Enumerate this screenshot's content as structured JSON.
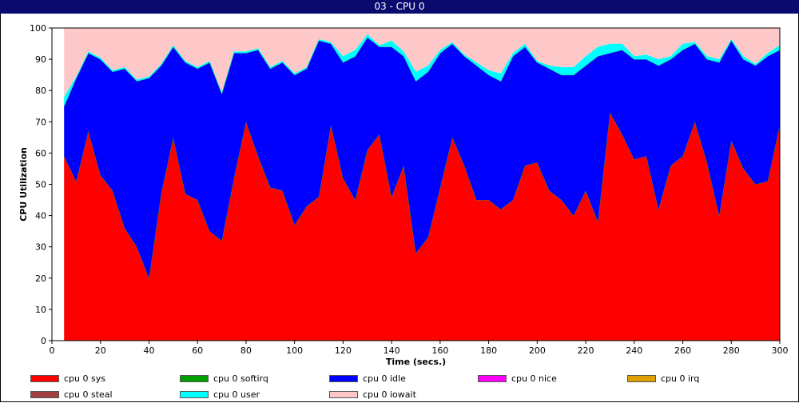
{
  "window": {
    "title": "03 - CPU 0"
  },
  "chart_data": {
    "type": "area",
    "stacked": true,
    "title": "03 - CPU 0",
    "xlabel": "Time (secs.)",
    "ylabel": "CPU Utilization",
    "xlim": [
      0,
      300
    ],
    "ylim": [
      0,
      100
    ],
    "x_ticks": [
      0,
      20,
      40,
      60,
      80,
      100,
      120,
      140,
      160,
      180,
      200,
      220,
      240,
      260,
      280,
      300
    ],
    "y_ticks": [
      0,
      10,
      20,
      30,
      40,
      50,
      60,
      70,
      80,
      90,
      100
    ],
    "grid": false,
    "legend_position": "bottom",
    "x": [
      5,
      10,
      15,
      20,
      25,
      30,
      35,
      40,
      45,
      50,
      55,
      60,
      65,
      70,
      75,
      80,
      85,
      90,
      95,
      100,
      105,
      110,
      115,
      120,
      125,
      130,
      135,
      140,
      145,
      150,
      155,
      160,
      165,
      170,
      175,
      180,
      185,
      190,
      195,
      200,
      205,
      210,
      215,
      220,
      225,
      230,
      235,
      240,
      245,
      250,
      255,
      260,
      265,
      270,
      275,
      280,
      285,
      290,
      295,
      300
    ],
    "series": [
      {
        "name": "cpu 0 sys",
        "color": "#ff0000",
        "values": [
          59,
          51,
          67,
          53,
          48,
          36,
          30,
          20,
          47,
          65,
          47,
          45,
          35,
          32,
          52,
          70,
          59,
          49,
          48,
          37,
          43,
          46,
          69,
          52,
          45,
          61,
          66,
          46,
          56,
          28,
          33,
          49,
          65,
          56,
          45,
          45,
          42,
          45,
          56,
          57,
          48,
          45,
          40,
          48,
          38,
          73,
          66,
          58,
          59,
          42,
          56,
          59,
          70,
          57,
          40,
          64,
          55,
          50,
          51,
          69
        ]
      },
      {
        "name": "cpu 0 softirq",
        "color": "#00a000",
        "values": [
          0,
          0,
          0,
          0,
          0,
          0,
          0,
          0,
          0,
          0,
          0,
          0,
          0,
          0,
          0,
          0,
          0,
          0,
          0,
          0,
          0,
          0,
          0,
          0,
          0,
          0,
          0,
          0,
          0,
          0,
          0,
          0,
          0,
          0,
          0,
          0,
          0,
          0,
          0,
          0,
          0,
          0,
          0,
          0,
          0,
          0,
          0,
          0,
          0,
          0,
          0,
          0,
          0,
          0,
          0,
          0,
          0,
          0,
          0,
          0
        ]
      },
      {
        "name": "cpu 0 idle",
        "color": "#0000ff",
        "values": [
          16,
          33,
          25,
          37,
          38,
          51,
          53,
          64,
          41,
          29,
          42,
          42,
          54,
          47,
          40,
          22,
          34,
          38,
          41,
          48,
          44,
          50,
          26,
          37,
          46,
          36,
          28,
          48,
          35,
          55,
          53,
          43,
          30,
          35,
          43,
          40,
          41,
          46,
          38,
          32,
          39,
          40,
          45,
          40,
          53,
          19,
          27,
          32,
          31,
          46,
          34,
          34,
          25,
          33,
          49,
          32,
          35,
          38,
          40,
          24
        ]
      },
      {
        "name": "cpu 0 nice",
        "color": "#ff00ff",
        "values": [
          0,
          0,
          0,
          0,
          0,
          0,
          0,
          0,
          0,
          0,
          0,
          0,
          0,
          0,
          0,
          0,
          0,
          0,
          0,
          0,
          0,
          0,
          0,
          0,
          0,
          0,
          0,
          0,
          0,
          0,
          0,
          0,
          0,
          0,
          0,
          0,
          0,
          0,
          0,
          0,
          0,
          0,
          0,
          0,
          0,
          0,
          0,
          0,
          0,
          0,
          0,
          0,
          0,
          0,
          0,
          0,
          0,
          0,
          0,
          0
        ]
      },
      {
        "name": "cpu 0 irq",
        "color": "#e0a000",
        "values": [
          0,
          0,
          0,
          0,
          0,
          0,
          0,
          0,
          0,
          0,
          0,
          0,
          0,
          0,
          0,
          0,
          0,
          0,
          0,
          0,
          0,
          0,
          0,
          0,
          0,
          0,
          0,
          0,
          0,
          0,
          0,
          0,
          0,
          0,
          0,
          0,
          0,
          0,
          0,
          0,
          0,
          0,
          0,
          0,
          0,
          0,
          0,
          0,
          0,
          0,
          0,
          0,
          0,
          0,
          0,
          0,
          0,
          0,
          0,
          0
        ]
      },
      {
        "name": "cpu 0 steal",
        "color": "#a04040",
        "values": [
          0,
          0,
          0,
          0,
          0,
          0,
          0,
          0,
          0,
          0,
          0,
          0,
          0,
          0,
          0,
          0,
          0,
          0,
          0,
          0,
          0,
          0,
          0,
          0,
          0,
          0,
          0,
          0,
          0,
          0,
          0,
          0,
          0,
          0,
          0,
          0,
          0,
          0,
          0,
          0,
          0,
          0,
          0,
          0,
          0,
          0,
          0,
          0,
          0,
          0,
          0,
          0,
          0,
          0,
          0,
          0,
          0,
          0,
          0,
          0
        ]
      },
      {
        "name": "cpu 0 user",
        "color": "#00ffff",
        "values": [
          3,
          0.5,
          0.5,
          0.5,
          0.5,
          0.5,
          0.5,
          0.5,
          0.5,
          0.5,
          0.5,
          0.5,
          0.5,
          0.5,
          0.5,
          0.5,
          0.5,
          0.5,
          0.5,
          0.5,
          0.5,
          0.5,
          0.5,
          2,
          2,
          1,
          0.5,
          2,
          1.5,
          3,
          2,
          1,
          0.5,
          0.5,
          1,
          1.5,
          2.5,
          1,
          1,
          0.5,
          1,
          2.5,
          2.5,
          3,
          3,
          3,
          2,
          1,
          1.5,
          2,
          1,
          2,
          0.5,
          1,
          1,
          0.5,
          1,
          0.5,
          1,
          1.5
        ]
      },
      {
        "name": "cpu 0 iowait",
        "color": "#ffc8c8",
        "values": [
          22,
          15.5,
          7.5,
          9.5,
          13.5,
          12.5,
          16.5,
          15.5,
          11.5,
          5.5,
          10.5,
          12.5,
          10.5,
          20.5,
          7.5,
          7.5,
          6.5,
          12.5,
          10.5,
          14.5,
          12.5,
          3.5,
          4.5,
          9,
          7,
          2,
          5.5,
          4,
          7.5,
          14,
          12,
          7,
          4.5,
          8.5,
          11,
          13.5,
          14.5,
          8,
          5,
          10.5,
          12,
          12.5,
          12.5,
          9,
          6,
          5,
          5,
          9,
          8.5,
          10,
          9,
          5,
          4.5,
          9,
          10,
          3.5,
          9,
          11.5,
          8,
          5.5
        ]
      }
    ]
  },
  "legend": {
    "items": [
      {
        "label": "cpu 0 sys",
        "color": "#ff0000"
      },
      {
        "label": "cpu 0 softirq",
        "color": "#00a000"
      },
      {
        "label": "cpu 0 idle",
        "color": "#0000ff"
      },
      {
        "label": "cpu 0 nice",
        "color": "#ff00ff"
      },
      {
        "label": "cpu 0 irq",
        "color": "#e0a000"
      },
      {
        "label": "cpu 0 steal",
        "color": "#a04040"
      },
      {
        "label": "cpu 0 user",
        "color": "#00ffff"
      },
      {
        "label": "cpu 0 iowait",
        "color": "#ffc8c8"
      }
    ]
  }
}
